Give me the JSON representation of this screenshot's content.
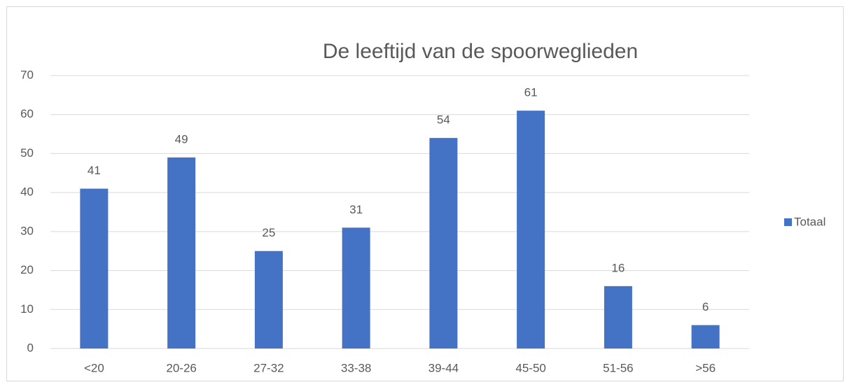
{
  "chart_data": {
    "type": "bar",
    "title": "De leeftijd van de spoorweglieden",
    "categories": [
      "<20",
      "20-26",
      "27-32",
      "33-38",
      "39-44",
      "45-50",
      "51-56",
      ">56"
    ],
    "series": [
      {
        "name": "Totaal",
        "color": "#4472c4",
        "values": [
          41,
          49,
          25,
          31,
          54,
          61,
          16,
          6
        ]
      }
    ],
    "ylim": [
      0,
      70
    ],
    "yticks": [
      0,
      10,
      20,
      30,
      40,
      50,
      60,
      70
    ],
    "grid": true,
    "legend": "right"
  }
}
